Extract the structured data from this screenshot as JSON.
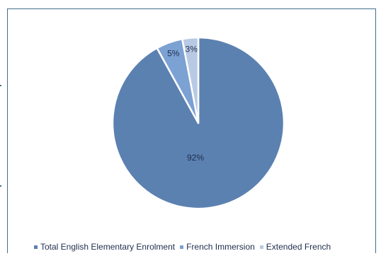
{
  "chart_data": {
    "type": "pie",
    "title": "",
    "series": [
      {
        "name": "Total English Elementary Enrolment",
        "value": 92,
        "label": "92%",
        "color": "#5b81b1"
      },
      {
        "name": "French Immersion",
        "value": 5,
        "label": "5%",
        "color": "#7ca1d3"
      },
      {
        "name": "Extended French",
        "value": 3,
        "label": "3%",
        "color": "#b8c9e4"
      }
    ],
    "legend_position": "bottom",
    "slice_border_color": "#ffffff"
  }
}
